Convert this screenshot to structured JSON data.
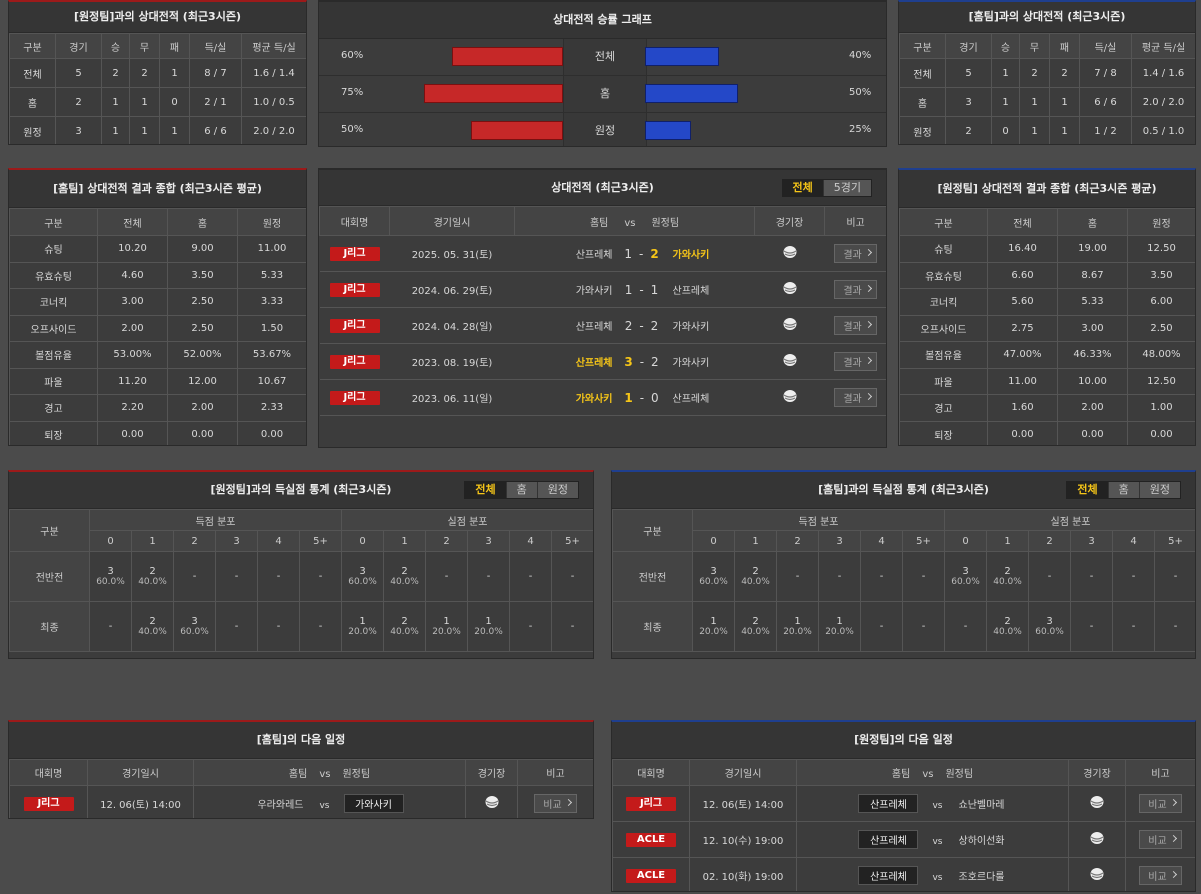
{
  "h2h_away": {
    "title": "[원정팀]과의 상대전적 (최근3시즌)",
    "headers": [
      "구분",
      "경기",
      "승",
      "무",
      "패",
      "득/실",
      "평균 득/실"
    ],
    "rows": [
      [
        "전체",
        "5",
        "2",
        "2",
        "1",
        "8 / 7",
        "1.6 / 1.4"
      ],
      [
        "홈",
        "2",
        "1",
        "1",
        "0",
        "2 / 1",
        "1.0 / 0.5"
      ],
      [
        "원정",
        "3",
        "1",
        "1",
        "1",
        "6 / 6",
        "2.0 / 2.0"
      ]
    ]
  },
  "winrate": {
    "title": "상대전적 승률 그래프",
    "home_color": "#c62828",
    "away_color": "#2448c8",
    "rows": [
      {
        "label": "전체",
        "home": {
          "value": 60,
          "label": "60%"
        },
        "away": {
          "value": 40,
          "label": "40%"
        }
      },
      {
        "label": "홈",
        "home": {
          "value": 75,
          "label": "75%"
        },
        "away": {
          "value": 50,
          "label": "50%"
        }
      },
      {
        "label": "원정",
        "home": {
          "value": 50,
          "label": "50%"
        },
        "away": {
          "value": 25,
          "label": "25%"
        }
      }
    ]
  },
  "h2h_home": {
    "title": "[홈팀]과의 상대전적 (최근3시즌)",
    "headers": [
      "구분",
      "경기",
      "승",
      "무",
      "패",
      "득/실",
      "평균 득/실"
    ],
    "rows": [
      [
        "전체",
        "5",
        "1",
        "2",
        "2",
        "7 / 8",
        "1.4 / 1.6"
      ],
      [
        "홈",
        "3",
        "1",
        "1",
        "1",
        "6 / 6",
        "2.0 / 2.0"
      ],
      [
        "원정",
        "2",
        "0",
        "1",
        "1",
        "1 / 2",
        "0.5 / 1.0"
      ]
    ]
  },
  "home_summary": {
    "title": "[홈팀] 상대전적 결과 종합 (최근3시즌 평균)",
    "headers": [
      "구분",
      "전체",
      "홈",
      "원정"
    ],
    "rows": [
      [
        "슈팅",
        "10.20",
        "9.00",
        "11.00"
      ],
      [
        "유효슈팅",
        "4.60",
        "3.50",
        "5.33"
      ],
      [
        "코너킥",
        "3.00",
        "2.50",
        "3.33"
      ],
      [
        "오프사이드",
        "2.00",
        "2.50",
        "1.50"
      ],
      [
        "볼점유율",
        "53.00%",
        "52.00%",
        "53.67%"
      ],
      [
        "파울",
        "11.20",
        "12.00",
        "10.67"
      ],
      [
        "경고",
        "2.20",
        "2.00",
        "2.33"
      ],
      [
        "퇴장",
        "0.00",
        "0.00",
        "0.00"
      ]
    ]
  },
  "matches": {
    "title": "상대전적 (최근3시즌)",
    "tabs": [
      "전체",
      "5경기"
    ],
    "headers": [
      "대회명",
      "경기일시",
      "홈팀",
      "vs",
      "원정팀",
      "경기장",
      "비고"
    ],
    "rows": [
      {
        "league": "J리그",
        "date": "2025. 05. 31(토)",
        "home": "산프레체",
        "home_score": 1,
        "sep": "-",
        "away_score": 2,
        "away": "가와사키",
        "winner": "away",
        "note": "결과"
      },
      {
        "league": "J리그",
        "date": "2024. 06. 29(토)",
        "home": "가와사키",
        "home_score": 1,
        "sep": "-",
        "away_score": 1,
        "away": "산프레체",
        "note": "결과"
      },
      {
        "league": "J리그",
        "date": "2024. 04. 28(일)",
        "home": "산프레체",
        "home_score": 2,
        "sep": "-",
        "away_score": 2,
        "away": "가와사키",
        "note": "결과"
      },
      {
        "league": "J리그",
        "date": "2023. 08. 19(토)",
        "home": "산프레체",
        "home_score": 3,
        "sep": "-",
        "away_score": 2,
        "away": "가와사키",
        "winner": "home",
        "note": "결과"
      },
      {
        "league": "J리그",
        "date": "2023. 06. 11(일)",
        "home": "가와사키",
        "home_score": 1,
        "sep": "-",
        "away_score": 0,
        "away": "산프레체",
        "winner": "home",
        "note": "결과"
      }
    ]
  },
  "away_summary": {
    "title": "[원정팀] 상대전적 결과 종합 (최근3시즌 평균)",
    "headers": [
      "구분",
      "전체",
      "홈",
      "원정"
    ],
    "rows": [
      [
        "슈팅",
        "16.40",
        "19.00",
        "12.50"
      ],
      [
        "유효슈팅",
        "6.60",
        "8.67",
        "3.50"
      ],
      [
        "코너킥",
        "5.60",
        "5.33",
        "6.00"
      ],
      [
        "오프사이드",
        "2.75",
        "3.00",
        "2.50"
      ],
      [
        "볼점유율",
        "47.00%",
        "46.33%",
        "48.00%"
      ],
      [
        "파울",
        "11.00",
        "10.00",
        "12.50"
      ],
      [
        "경고",
        "1.60",
        "2.00",
        "1.00"
      ],
      [
        "퇴장",
        "0.00",
        "0.00",
        "0.00"
      ]
    ]
  },
  "goals_vs_away": {
    "title": "[원정팀]과의 득실점 통계 (최근3시즌)",
    "tabs": [
      "전체",
      "홈",
      "원정"
    ],
    "headers": {
      "label": "구분",
      "scored": "득점 분포",
      "conceded": "실점 분포",
      "goals": [
        "0",
        "1",
        "2",
        "3",
        "4",
        "5+"
      ]
    },
    "rows": [
      {
        "label": "전반전",
        "scored": [
          {
            "count": "3",
            "pct": "60.0%"
          },
          {
            "count": "2",
            "pct": "40.0%"
          },
          "-",
          "-",
          "-",
          "-"
        ],
        "conceded": [
          {
            "count": "3",
            "pct": "60.0%"
          },
          {
            "count": "2",
            "pct": "40.0%"
          },
          "-",
          "-",
          "-",
          "-"
        ]
      },
      {
        "label": "최종",
        "scored": [
          "-",
          {
            "count": "2",
            "pct": "40.0%"
          },
          {
            "count": "3",
            "pct": "60.0%"
          },
          "-",
          "-",
          "-"
        ],
        "conceded": [
          {
            "count": "1",
            "pct": "20.0%"
          },
          {
            "count": "2",
            "pct": "40.0%"
          },
          {
            "count": "1",
            "pct": "20.0%"
          },
          {
            "count": "1",
            "pct": "20.0%"
          },
          "-",
          "-"
        ]
      }
    ]
  },
  "goals_vs_home": {
    "title": "[홈팀]과의 득실점 통계 (최근3시즌)",
    "tabs": [
      "전체",
      "홈",
      "원정"
    ],
    "headers": {
      "label": "구분",
      "scored": "득점 분포",
      "conceded": "실점 분포",
      "goals": [
        "0",
        "1",
        "2",
        "3",
        "4",
        "5+"
      ]
    },
    "rows": [
      {
        "label": "전반전",
        "scored": [
          {
            "count": "3",
            "pct": "60.0%"
          },
          {
            "count": "2",
            "pct": "40.0%"
          },
          "-",
          "-",
          "-",
          "-"
        ],
        "conceded": [
          {
            "count": "3",
            "pct": "60.0%"
          },
          {
            "count": "2",
            "pct": "40.0%"
          },
          "-",
          "-",
          "-",
          "-"
        ]
      },
      {
        "label": "최종",
        "scored": [
          {
            "count": "1",
            "pct": "20.0%"
          },
          {
            "count": "2",
            "pct": "40.0%"
          },
          {
            "count": "1",
            "pct": "20.0%"
          },
          {
            "count": "1",
            "pct": "20.0%"
          },
          "-",
          "-"
        ],
        "conceded": [
          "-",
          {
            "count": "2",
            "pct": "40.0%"
          },
          {
            "count": "3",
            "pct": "60.0%"
          },
          "-",
          "-",
          "-"
        ]
      }
    ]
  },
  "home_next": {
    "title": "[홈팀]의 다음 일정",
    "headers": [
      "대회명",
      "경기일시",
      "홈팀",
      "vs",
      "원정팀",
      "경기장",
      "비고"
    ],
    "rows": [
      {
        "league": "J리그",
        "date": "12. 06(토) 14:00",
        "home": "우라와레드",
        "away": "가와사키",
        "boxed": "away",
        "note": "비교"
      }
    ]
  },
  "away_next": {
    "title": "[원정팀]의 다음 일정",
    "headers": [
      "대회명",
      "경기일시",
      "홈팀",
      "vs",
      "원정팀",
      "경기장",
      "비고"
    ],
    "rows": [
      {
        "league": "J리그",
        "date": "12. 06(토) 14:00",
        "home": "산프레체",
        "away": "쇼난벨마레",
        "boxed": "home",
        "note": "비교"
      },
      {
        "league": "ACLE",
        "date": "12. 10(수) 19:00",
        "home": "산프레체",
        "away": "상하이선화",
        "boxed": "home",
        "note": "비교"
      },
      {
        "league": "ACLE",
        "date": "02. 10(화) 19:00",
        "home": "산프레체",
        "away": "조호르다룰",
        "boxed": "home",
        "note": "비교"
      }
    ]
  }
}
